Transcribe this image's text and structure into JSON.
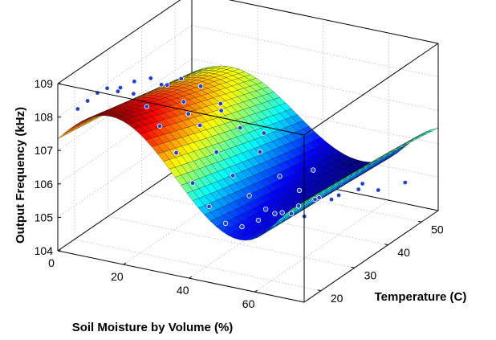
{
  "chart_data": {
    "type": "surface3d",
    "xlabel": "Soil Moisture by Volume (%)",
    "ylabel": "Temperature (C)",
    "zlabel": "Output Frequency (kHz)",
    "xlim": [
      0,
      75
    ],
    "ylim": [
      15,
      55
    ],
    "zlim": [
      104,
      109
    ],
    "x_ticks": [
      0,
      20,
      40,
      60
    ],
    "y_ticks": [
      20,
      30,
      40,
      50
    ],
    "z_ticks": [
      104,
      105,
      106,
      107,
      108,
      109
    ],
    "grid": true,
    "colormap": "jet",
    "marker_color": "#1f3fd6",
    "series": [
      {
        "type": "scatter3d",
        "points": [
          [
            3,
            18,
            108.1
          ],
          [
            6,
            18,
            108.4
          ],
          [
            9,
            18,
            108.7
          ],
          [
            12,
            18,
            108.9
          ],
          [
            16,
            18,
            109.0
          ],
          [
            20,
            18,
            108.9
          ],
          [
            24,
            18,
            108.6
          ],
          [
            28,
            18,
            108.1
          ],
          [
            33,
            18,
            107.4
          ],
          [
            38,
            18,
            106.6
          ],
          [
            43,
            18,
            106.0
          ],
          [
            48,
            18,
            105.6
          ],
          [
            53,
            18,
            105.6
          ],
          [
            58,
            18,
            105.9
          ],
          [
            63,
            18,
            106.2
          ],
          [
            68,
            18,
            106.3
          ],
          [
            72,
            18,
            106.3
          ],
          [
            3,
            30,
            107.8
          ],
          [
            8,
            30,
            108.2
          ],
          [
            13,
            30,
            108.4
          ],
          [
            18,
            30,
            108.3
          ],
          [
            23,
            30,
            107.9
          ],
          [
            28,
            30,
            107.3
          ],
          [
            33,
            30,
            106.6
          ],
          [
            38,
            30,
            106.0
          ],
          [
            43,
            30,
            105.5
          ],
          [
            48,
            30,
            105.2
          ],
          [
            53,
            30,
            105.2
          ],
          [
            58,
            30,
            105.5
          ],
          [
            63,
            30,
            105.8
          ],
          [
            68,
            30,
            105.9
          ],
          [
            4,
            42,
            107.2
          ],
          [
            10,
            42,
            107.5
          ],
          [
            16,
            42,
            107.4
          ],
          [
            22,
            42,
            107.0
          ],
          [
            28,
            42,
            106.4
          ],
          [
            34,
            42,
            105.8
          ],
          [
            40,
            42,
            105.2
          ],
          [
            46,
            42,
            104.9
          ],
          [
            52,
            42,
            104.8
          ],
          [
            58,
            42,
            105.0
          ],
          [
            64,
            42,
            105.3
          ],
          [
            70,
            42,
            105.4
          ],
          [
            2,
            52,
            105.6
          ],
          [
            12,
            52,
            105.9
          ],
          [
            25,
            52,
            105.5
          ],
          [
            40,
            52,
            104.7
          ],
          [
            55,
            52,
            104.6
          ],
          [
            68,
            52,
            104.9
          ]
        ]
      }
    ]
  }
}
